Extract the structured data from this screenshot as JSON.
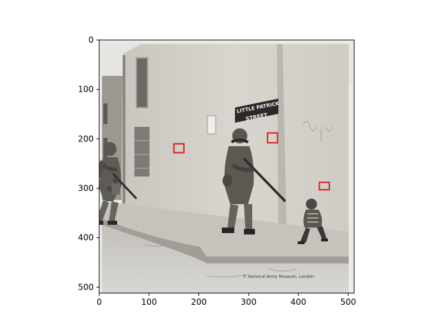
{
  "image": {
    "description_free": true,
    "photo_caption": "© National Army Museum, London",
    "street_sign": {
      "line1": "LITTLE PATRICK",
      "line2": "STREET"
    },
    "detection_box_color": "#e0201b"
  },
  "axes": {
    "x_ticks": [
      "0",
      "100",
      "200",
      "300",
      "400",
      "500"
    ],
    "y_ticks": [
      "0",
      "100",
      "200",
      "300",
      "400",
      "500"
    ],
    "x_range": [
      0,
      512
    ],
    "y_range": [
      512,
      0
    ]
  },
  "detections": [
    {
      "label": "face",
      "x0": 150,
      "y0": 210,
      "x1": 170,
      "y1": 228
    },
    {
      "label": "face",
      "x0": 338,
      "y0": 188,
      "x1": 358,
      "y1": 208
    },
    {
      "label": "face",
      "x0": 442,
      "y0": 288,
      "x1": 462,
      "y1": 303
    }
  ]
}
